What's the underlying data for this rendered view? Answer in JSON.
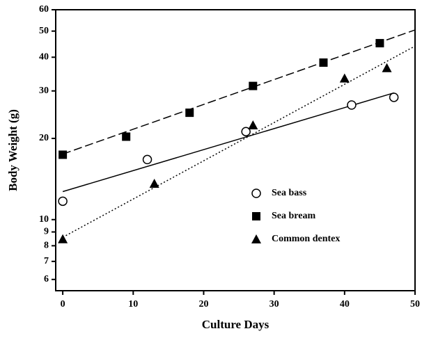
{
  "chart_data": {
    "type": "scatter",
    "x_label": "Culture Days",
    "y_label": "Body Weight (g)",
    "xlim": [
      -1,
      50
    ],
    "xticks": [
      0,
      10,
      20,
      30,
      40,
      50
    ],
    "ylim": [
      5.45,
      60
    ],
    "yticks": [
      6,
      7,
      8,
      9,
      10,
      20,
      30,
      40,
      50,
      60
    ],
    "y_scale": "log",
    "legend_position": "lower right",
    "series": [
      {
        "name": "Sea bass",
        "color": "#000000",
        "marker": "circle",
        "line_style": "solid",
        "x": [
          0,
          12,
          26,
          41,
          47
        ],
        "values": [
          11.7,
          16.7,
          21.2,
          26.6,
          28.4
        ],
        "fit": {
          "x": [
            0,
            47
          ],
          "values": [
            12.7,
            29.5
          ]
        }
      },
      {
        "name": "Sea bream",
        "color": "#000000",
        "marker": "square",
        "line_style": "dashed",
        "x": [
          0,
          9,
          18,
          27,
          37,
          45
        ],
        "values": [
          17.4,
          20.3,
          24.9,
          31.3,
          38.2,
          45.1
        ],
        "fit": {
          "x": [
            0,
            50
          ],
          "values": [
            17.5,
            50.5
          ]
        }
      },
      {
        "name": "Common dentex",
        "color": "#000000",
        "marker": "triangle",
        "line_style": "dotted",
        "x": [
          0,
          13,
          27,
          40,
          46
        ],
        "values": [
          8.47,
          13.6,
          22.4,
          33.4,
          36.5
        ],
        "fit": {
          "x": [
            0,
            50
          ],
          "values": [
            8.6,
            44
          ]
        }
      }
    ]
  }
}
